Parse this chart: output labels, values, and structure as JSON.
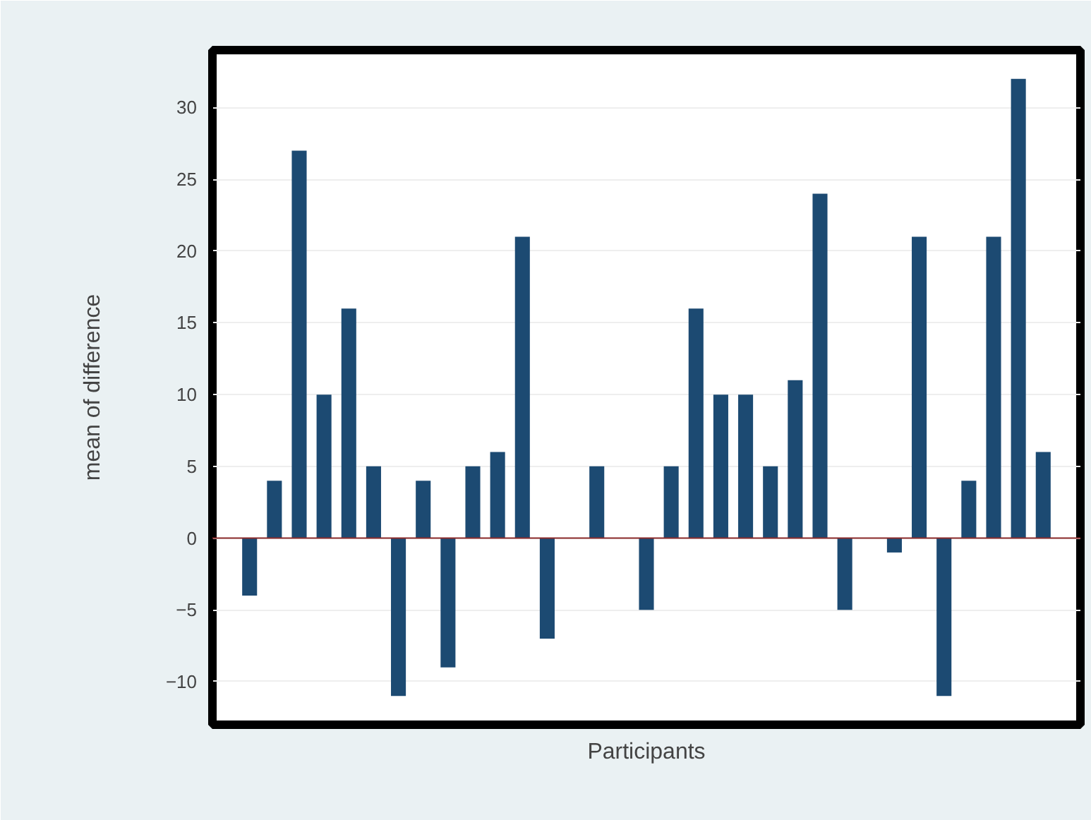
{
  "chart_data": {
    "type": "bar",
    "xlabel": "Participants",
    "ylabel": "mean of difference",
    "categories": [
      null,
      null,
      null,
      null,
      null,
      null,
      null,
      null,
      null,
      null,
      null,
      null,
      null,
      null,
      null,
      null,
      null,
      null,
      null,
      null,
      null,
      null,
      null,
      null,
      null,
      null,
      null,
      null,
      null,
      null,
      null,
      null,
      null,
      null,
      null
    ],
    "values": [
      null,
      -4,
      4,
      27,
      10,
      16,
      5,
      -11,
      4,
      -9,
      5,
      6,
      21,
      -7,
      0,
      5,
      0,
      -5,
      5,
      16,
      10,
      10,
      5,
      11,
      24,
      -5,
      0,
      -1,
      21,
      -11,
      4,
      21,
      32,
      6,
      null
    ],
    "color": "#1c4a72",
    "ylim": [
      -13,
      34
    ],
    "yticks": [
      -10,
      -5,
      0,
      5,
      10,
      15,
      20,
      25,
      30
    ],
    "grid": "y",
    "ref_lines": [
      {
        "axis": "y",
        "value": 0,
        "color": "#8b2a2a"
      }
    ]
  }
}
